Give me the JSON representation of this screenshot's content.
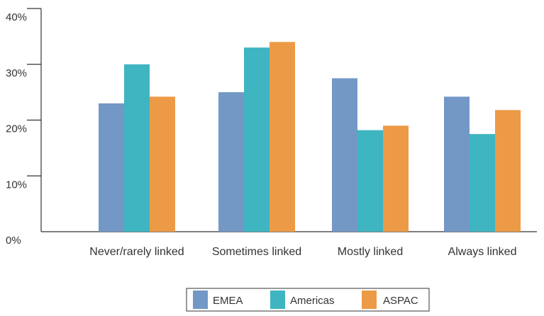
{
  "chart_data": {
    "type": "bar",
    "categories": [
      "Never/rarely linked",
      "Sometimes linked",
      "Mostly linked",
      "Always linked"
    ],
    "series": [
      {
        "name": "EMEA",
        "values": [
          23,
          25,
          27.5,
          24.2
        ]
      },
      {
        "name": "Americas",
        "values": [
          30,
          33,
          18.2,
          17.5
        ]
      },
      {
        "name": "ASPAC",
        "values": [
          24.2,
          34,
          19,
          21.8
        ]
      }
    ],
    "ylim": [
      0,
      40
    ],
    "yticks": [
      0,
      10,
      20,
      30,
      40
    ],
    "ytick_labels": [
      "0%",
      "10%",
      "20%",
      "30%",
      "40%"
    ],
    "grid": false,
    "legend": "bottom-center",
    "colors": [
      "#7398c6",
      "#3fb5c1",
      "#ed9a47"
    ]
  }
}
